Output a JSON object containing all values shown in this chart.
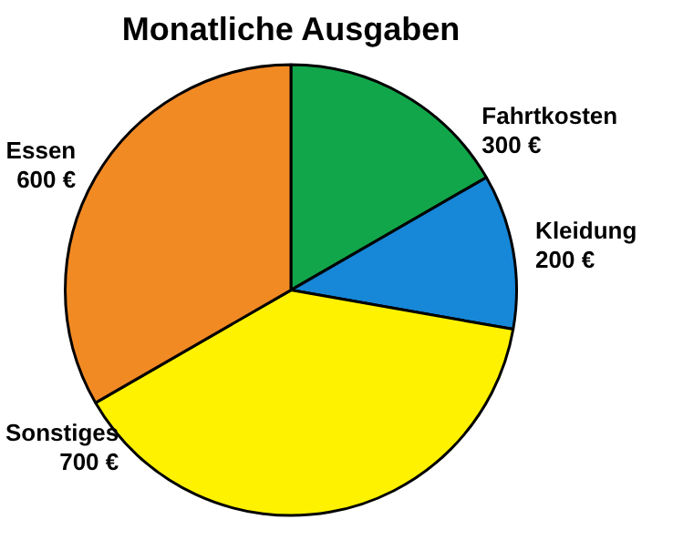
{
  "chart_data": {
    "type": "pie",
    "title": "Monatliche Ausgaben",
    "categories": [
      "Fahrtkosten",
      "Kleidung",
      "Sonstiges",
      "Essen"
    ],
    "values": [
      300,
      200,
      700,
      600
    ],
    "value_labels": [
      "300 €",
      "200 €",
      "700 €",
      "600 €"
    ],
    "colors": [
      "#12a64a",
      "#1787d8",
      "#fff200",
      "#f28a24"
    ],
    "legend": false
  }
}
